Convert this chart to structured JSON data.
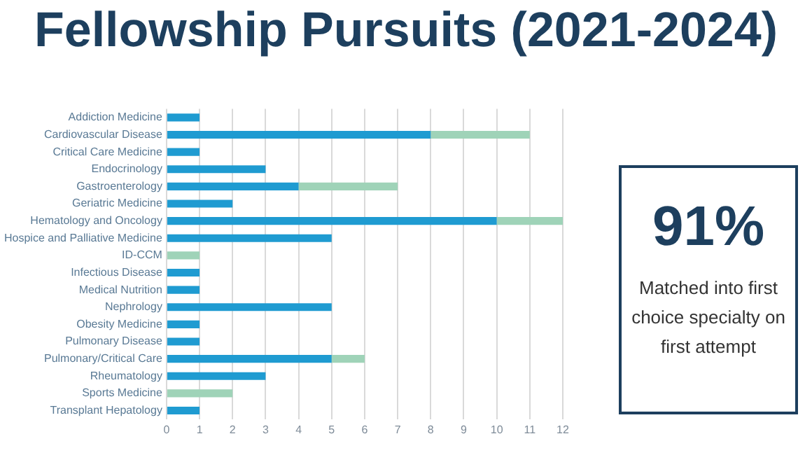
{
  "chart_data": [
    {
      "type": "bar",
      "title": "Fellowship Pursuits (2021-2024)",
      "orientation": "horizontal",
      "stacked": true,
      "grid": "x",
      "categories": [
        "Addiction Medicine",
        "Cardiovascular Disease",
        "Critical Care Medicine",
        "Endocrinology",
        "Gastroenterology",
        "Geriatric Medicine",
        "Hematology and Oncology",
        "Hospice and Palliative Medicine",
        "ID-CCM",
        "Infectious Disease",
        "Medical Nutrition",
        "Nephrology",
        "Obesity Medicine",
        "Pulmonary Disease",
        "Pulmonary/Critical Care",
        "Rheumatology",
        "Sports Medicine",
        "Transplant Hepatology"
      ],
      "series": [
        {
          "color": "#1f9bd1",
          "values": [
            1,
            8,
            1,
            3,
            4,
            2,
            10,
            5,
            0,
            1,
            1,
            5,
            1,
            1,
            5,
            3,
            0,
            1
          ]
        },
        {
          "color": "#9fd3b8",
          "values": [
            0,
            3,
            0,
            0,
            3,
            0,
            2,
            0,
            1,
            0,
            0,
            0,
            0,
            0,
            1,
            0,
            2,
            0
          ]
        }
      ],
      "xlim": [
        0,
        12
      ],
      "xticks": [
        0,
        1,
        2,
        3,
        4,
        5,
        6,
        7,
        8,
        9,
        10,
        11,
        12
      ]
    },
    {
      "type": "other",
      "title": "91%",
      "annotations": [
        "Matched into first choice specialty on first attempt"
      ]
    }
  ]
}
